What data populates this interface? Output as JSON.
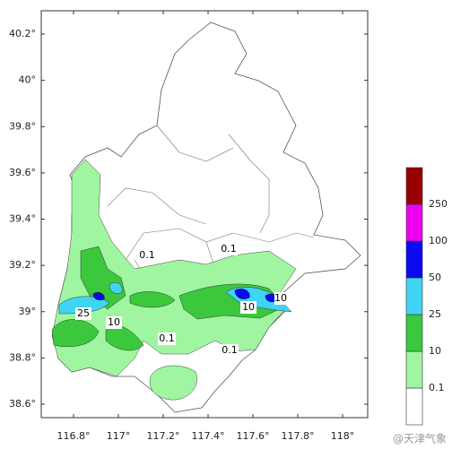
{
  "map": {
    "lat_ticks": [
      {
        "value": 40.2,
        "label": "40.2°"
      },
      {
        "value": 40,
        "label": "40°"
      },
      {
        "value": 39.8,
        "label": "39.8°"
      },
      {
        "value": 39.6,
        "label": "39.6°"
      },
      {
        "value": 39.4,
        "label": "39.4°"
      },
      {
        "value": 39.2,
        "label": "39.2°"
      },
      {
        "value": 39,
        "label": "39°"
      },
      {
        "value": 38.8,
        "label": "38.8°"
      },
      {
        "value": 38.6,
        "label": "38.6°"
      }
    ],
    "lon_ticks": [
      {
        "value": 116.8,
        "label": "116.8°"
      },
      {
        "value": 117,
        "label": "117°"
      },
      {
        "value": 117.2,
        "label": "117.2°"
      },
      {
        "value": 117.4,
        "label": "117.4°"
      },
      {
        "value": 117.6,
        "label": "117.6°"
      },
      {
        "value": 117.8,
        "label": "117.8°"
      },
      {
        "value": 118,
        "label": "118°"
      }
    ],
    "colorbar": {
      "levels": [
        0.1,
        10,
        25,
        50,
        100,
        250
      ],
      "colors": [
        "#ffffff",
        "#a0f5a0",
        "#3cc83c",
        "#40d4f4",
        "#0a0af0",
        "#f000f0",
        "#960000"
      ]
    },
    "contour_labels": [
      "0.1",
      "0.1",
      "0.1",
      "0.1",
      "25",
      "10",
      "10",
      "10"
    ],
    "watermark": "@天津气象"
  }
}
